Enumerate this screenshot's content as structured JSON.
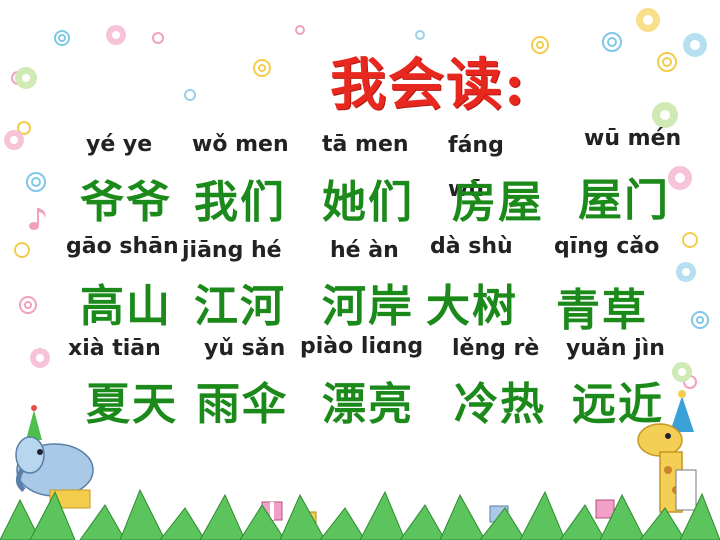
{
  "title": "我会读:",
  "rows": [
    [
      {
        "pinyin": "yé  ye",
        "hanzi": "爷爷"
      },
      {
        "pinyin": "wǒ  men",
        "hanzi": "我们"
      },
      {
        "pinyin": "tā men",
        "hanzi": "她们"
      },
      {
        "pinyin": "fáng wū",
        "hanzi": "房屋"
      },
      {
        "pinyin": "wū mén",
        "hanzi": "屋门"
      }
    ],
    [
      {
        "pinyin": "gāo shān",
        "hanzi": "高山"
      },
      {
        "pinyin": "jiāng hé",
        "hanzi": "江河"
      },
      {
        "pinyin": "hé àn",
        "hanzi": "河岸"
      },
      {
        "pinyin": "dà shù",
        "hanzi": "大树"
      },
      {
        "pinyin": "qīng cǎo",
        "hanzi": "青草"
      }
    ],
    [
      {
        "pinyin": "xià tiān",
        "hanzi": "夏天"
      },
      {
        "pinyin": "yǔ sǎn",
        "hanzi": "雨伞"
      },
      {
        "pinyin": "piào liɑng",
        "hanzi": "漂亮"
      },
      {
        "pinyin": "lěng rè",
        "hanzi": "冷热"
      },
      {
        "pinyin": "yuǎn jìn",
        "hanzi": "远近"
      }
    ]
  ],
  "colors": {
    "title": "#e8281e",
    "hanzi": "#1b8a1b",
    "pinyin": "#222222"
  },
  "icons": [
    "swirl-circle-icon",
    "flower-icon",
    "music-note-icon",
    "party-elephant-icon",
    "party-giraffe-icon",
    "gift-box-icon",
    "grass-leaf-icon"
  ]
}
